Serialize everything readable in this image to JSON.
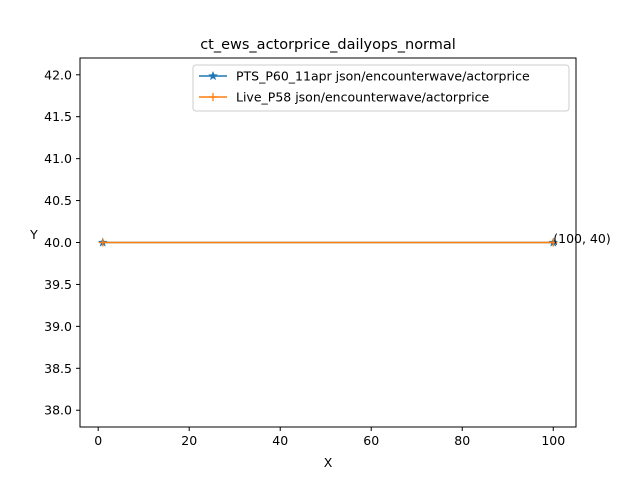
{
  "chart_data": {
    "type": "line",
    "title": "ct_ews_actorprice_dailyops_normal",
    "xlabel": "X",
    "ylabel": "Y",
    "xlim": [
      -4,
      105
    ],
    "ylim": [
      37.8,
      42.2
    ],
    "xticks": [
      0,
      20,
      40,
      60,
      80,
      100
    ],
    "yticks": [
      38.0,
      38.5,
      39.0,
      39.5,
      40.0,
      40.5,
      41.0,
      41.5,
      42.0
    ],
    "grid": false,
    "legend_position": "top-right",
    "series": [
      {
        "name": "PTS_P60_11apr json/encounterwave/actorprice",
        "color": "#1f77b4",
        "marker": "star",
        "x": [
          1,
          100
        ],
        "y": [
          40,
          40
        ]
      },
      {
        "name": "Live_P58 json/encounterwave/actorprice",
        "color": "#ff7f0e",
        "marker": "plus",
        "x": [
          1,
          100
        ],
        "y": [
          40,
          40
        ]
      }
    ],
    "annotations": [
      {
        "text": "(100, 40)",
        "x": 100,
        "y": 40
      }
    ]
  }
}
